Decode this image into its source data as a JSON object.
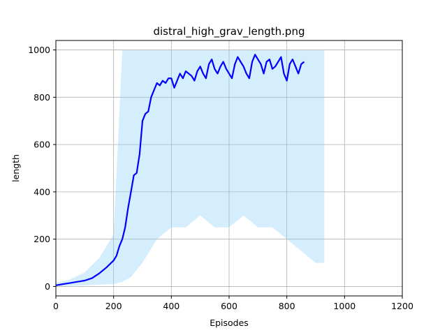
{
  "chart_data": {
    "type": "line",
    "title": "distral_high_grav_length.png",
    "xlabel": "Episodes",
    "ylabel": "length",
    "xlim": [
      0,
      1200
    ],
    "ylim": [
      -40,
      1040
    ],
    "xticks": [
      0,
      200,
      400,
      600,
      800,
      1000,
      1200
    ],
    "yticks": [
      0,
      200,
      400,
      600,
      800,
      1000
    ],
    "xtick_labels": [
      "0",
      "200",
      "400",
      "600",
      "800",
      "1000",
      "1200"
    ],
    "ytick_labels": [
      "0",
      "200",
      "400",
      "600",
      "800",
      "1000"
    ],
    "grid": true,
    "colors": {
      "mean_line": "#0000ff",
      "band": "#87cefa",
      "grid": "#b0b0b0"
    },
    "series": [
      {
        "kind": "mean",
        "x": [
          0,
          25,
          50,
          75,
          100,
          125,
          150,
          175,
          200,
          210,
          220,
          230,
          240,
          250,
          260,
          270,
          280,
          290,
          300,
          310,
          320,
          330,
          340,
          350,
          360,
          370,
          380,
          390,
          400,
          410,
          420,
          430,
          440,
          450,
          460,
          470,
          480,
          490,
          500,
          510,
          520,
          530,
          540,
          550,
          560,
          570,
          580,
          590,
          600,
          610,
          620,
          630,
          640,
          650,
          660,
          670,
          680,
          690,
          700,
          710,
          720,
          730,
          740,
          750,
          760,
          770,
          780,
          790,
          800,
          810,
          820,
          830,
          840,
          850,
          860
        ],
        "y": [
          5,
          10,
          15,
          20,
          25,
          35,
          55,
          80,
          110,
          130,
          170,
          200,
          250,
          330,
          400,
          470,
          480,
          560,
          700,
          730,
          740,
          800,
          830,
          860,
          850,
          870,
          860,
          880,
          880,
          840,
          870,
          900,
          880,
          910,
          900,
          890,
          870,
          910,
          930,
          900,
          880,
          940,
          960,
          920,
          900,
          930,
          950,
          920,
          900,
          880,
          940,
          970,
          950,
          930,
          900,
          880,
          950,
          980,
          960,
          940,
          900,
          950,
          960,
          920,
          930,
          950,
          970,
          900,
          870,
          940,
          960,
          930,
          900,
          940,
          950
        ]
      },
      {
        "kind": "band",
        "x": [
          0,
          50,
          100,
          150,
          200,
          230,
          260,
          300,
          350,
          400,
          450,
          500,
          550,
          600,
          650,
          700,
          750,
          800,
          850,
          900,
          930
        ],
        "upper": [
          15,
          30,
          60,
          120,
          220,
          1000,
          1000,
          1000,
          1000,
          1000,
          1000,
          1000,
          1000,
          1000,
          1000,
          1000,
          1000,
          1000,
          1000,
          1000,
          1000
        ],
        "lower": [
          0,
          3,
          5,
          8,
          10,
          20,
          40,
          100,
          200,
          250,
          250,
          300,
          250,
          250,
          300,
          250,
          250,
          200,
          150,
          100,
          100
        ]
      }
    ]
  }
}
